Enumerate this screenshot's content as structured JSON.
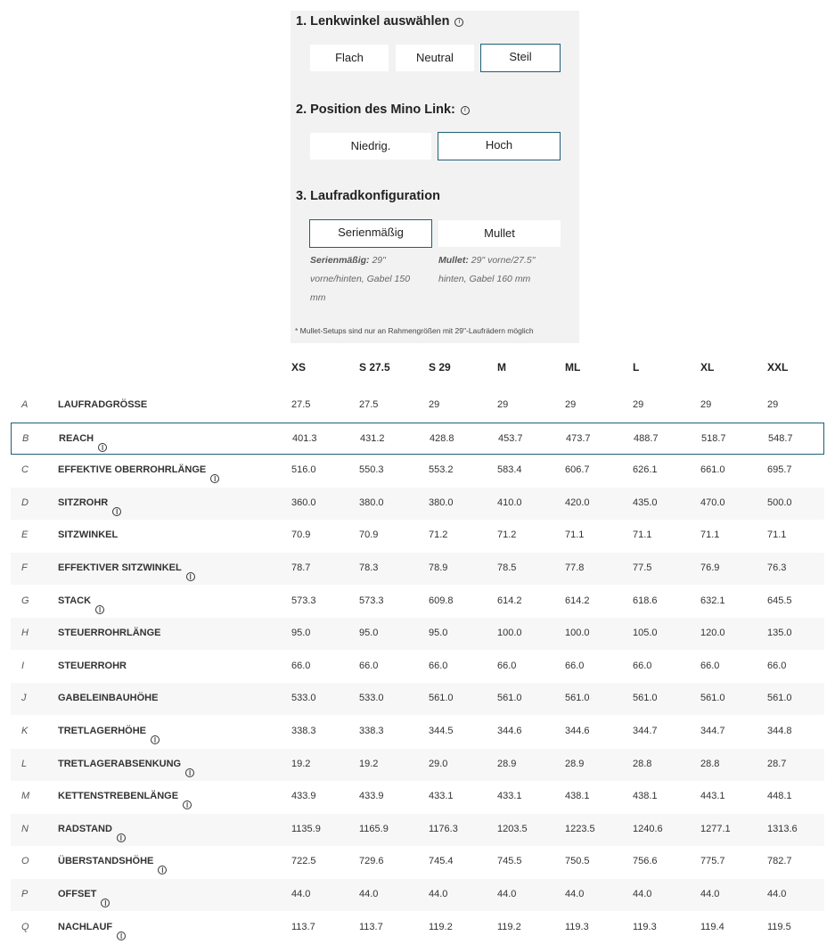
{
  "config": {
    "steering": {
      "title": "1. Lenkwinkel auswählen",
      "options": [
        "Flach",
        "Neutral",
        "Steil"
      ],
      "selected": "Steil"
    },
    "minolink": {
      "title": "2. Position des Mino Link:",
      "options": [
        "Niedrig.",
        "Hoch"
      ],
      "selected": "Hoch"
    },
    "wheels": {
      "title": "3. Laufradkonfiguration",
      "options": [
        "Serienmäßig",
        "Mullet"
      ],
      "selected": "Serienmäßig",
      "notes": [
        {
          "label": "Serienmäßig:",
          "text": " 29\" vorne/hinten, Gabel 150 mm"
        },
        {
          "label": "Mullet:",
          "text": " 29\" vorne/27.5\" hinten, Gabel 160 mm"
        }
      ]
    },
    "footnote": "* Mullet-Setups sind nur an Rahmengrößen mit 29\"-Laufrädern möglich",
    "accent": "#1f5f74"
  },
  "table": {
    "sizes": [
      "XS",
      "S 27.5",
      "S 29",
      "M",
      "ML",
      "L",
      "XL",
      "XXL"
    ],
    "highlighted": "B",
    "rows": [
      {
        "letter": "A",
        "name": "LAUFRADGRÖSSE",
        "info": false,
        "values": [
          "27.5",
          "27.5",
          "29",
          "29",
          "29",
          "29",
          "29",
          "29"
        ]
      },
      {
        "letter": "B",
        "name": "REACH",
        "info": true,
        "values": [
          "401.3",
          "431.2",
          "428.8",
          "453.7",
          "473.7",
          "488.7",
          "518.7",
          "548.7"
        ]
      },
      {
        "letter": "C",
        "name": "EFFEKTIVE OBERROHRLÄNGE",
        "info": true,
        "values": [
          "516.0",
          "550.3",
          "553.2",
          "583.4",
          "606.7",
          "626.1",
          "661.0",
          "695.7"
        ]
      },
      {
        "letter": "D",
        "name": "SITZROHR",
        "info": true,
        "values": [
          "360.0",
          "380.0",
          "380.0",
          "410.0",
          "420.0",
          "435.0",
          "470.0",
          "500.0"
        ]
      },
      {
        "letter": "E",
        "name": "SITZWINKEL",
        "info": false,
        "values": [
          "70.9",
          "70.9",
          "71.2",
          "71.2",
          "71.1",
          "71.1",
          "71.1",
          "71.1"
        ]
      },
      {
        "letter": "F",
        "name": "EFFEKTIVER SITZWINKEL",
        "info": true,
        "values": [
          "78.7",
          "78.3",
          "78.9",
          "78.5",
          "77.8",
          "77.5",
          "76.9",
          "76.3"
        ]
      },
      {
        "letter": "G",
        "name": "STACK",
        "info": true,
        "values": [
          "573.3",
          "573.3",
          "609.8",
          "614.2",
          "614.2",
          "618.6",
          "632.1",
          "645.5"
        ]
      },
      {
        "letter": "H",
        "name": "STEUERROHRLÄNGE",
        "info": false,
        "values": [
          "95.0",
          "95.0",
          "95.0",
          "100.0",
          "100.0",
          "105.0",
          "120.0",
          "135.0"
        ]
      },
      {
        "letter": "I",
        "name": "STEUERROHR",
        "info": false,
        "values": [
          "66.0",
          "66.0",
          "66.0",
          "66.0",
          "66.0",
          "66.0",
          "66.0",
          "66.0"
        ]
      },
      {
        "letter": "J",
        "name": "GABELEINBAUHÖHE",
        "info": false,
        "values": [
          "533.0",
          "533.0",
          "561.0",
          "561.0",
          "561.0",
          "561.0",
          "561.0",
          "561.0"
        ]
      },
      {
        "letter": "K",
        "name": "TRETLAGERHÖHE",
        "info": true,
        "values": [
          "338.3",
          "338.3",
          "344.5",
          "344.6",
          "344.6",
          "344.7",
          "344.7",
          "344.8"
        ]
      },
      {
        "letter": "L",
        "name": "TRETLAGERABSENKUNG",
        "info": true,
        "values": [
          "19.2",
          "19.2",
          "29.0",
          "28.9",
          "28.9",
          "28.8",
          "28.8",
          "28.7"
        ]
      },
      {
        "letter": "M",
        "name": "KETTENSTREBENLÄNGE",
        "info": true,
        "values": [
          "433.9",
          "433.9",
          "433.1",
          "433.1",
          "438.1",
          "438.1",
          "443.1",
          "448.1"
        ]
      },
      {
        "letter": "N",
        "name": "RADSTAND",
        "info": true,
        "values": [
          "1135.9",
          "1165.9",
          "1176.3",
          "1203.5",
          "1223.5",
          "1240.6",
          "1277.1",
          "1313.6"
        ]
      },
      {
        "letter": "O",
        "name": "ÜBERSTANDSHÖHE",
        "info": true,
        "values": [
          "722.5",
          "729.6",
          "745.4",
          "745.5",
          "750.5",
          "756.6",
          "775.7",
          "782.7"
        ]
      },
      {
        "letter": "P",
        "name": "OFFSET",
        "info": true,
        "values": [
          "44.0",
          "44.0",
          "44.0",
          "44.0",
          "44.0",
          "44.0",
          "44.0",
          "44.0"
        ]
      },
      {
        "letter": "Q",
        "name": "NACHLAUF",
        "info": true,
        "values": [
          "113.7",
          "113.7",
          "119.2",
          "119.2",
          "119.3",
          "119.3",
          "119.4",
          "119.5"
        ]
      }
    ]
  }
}
